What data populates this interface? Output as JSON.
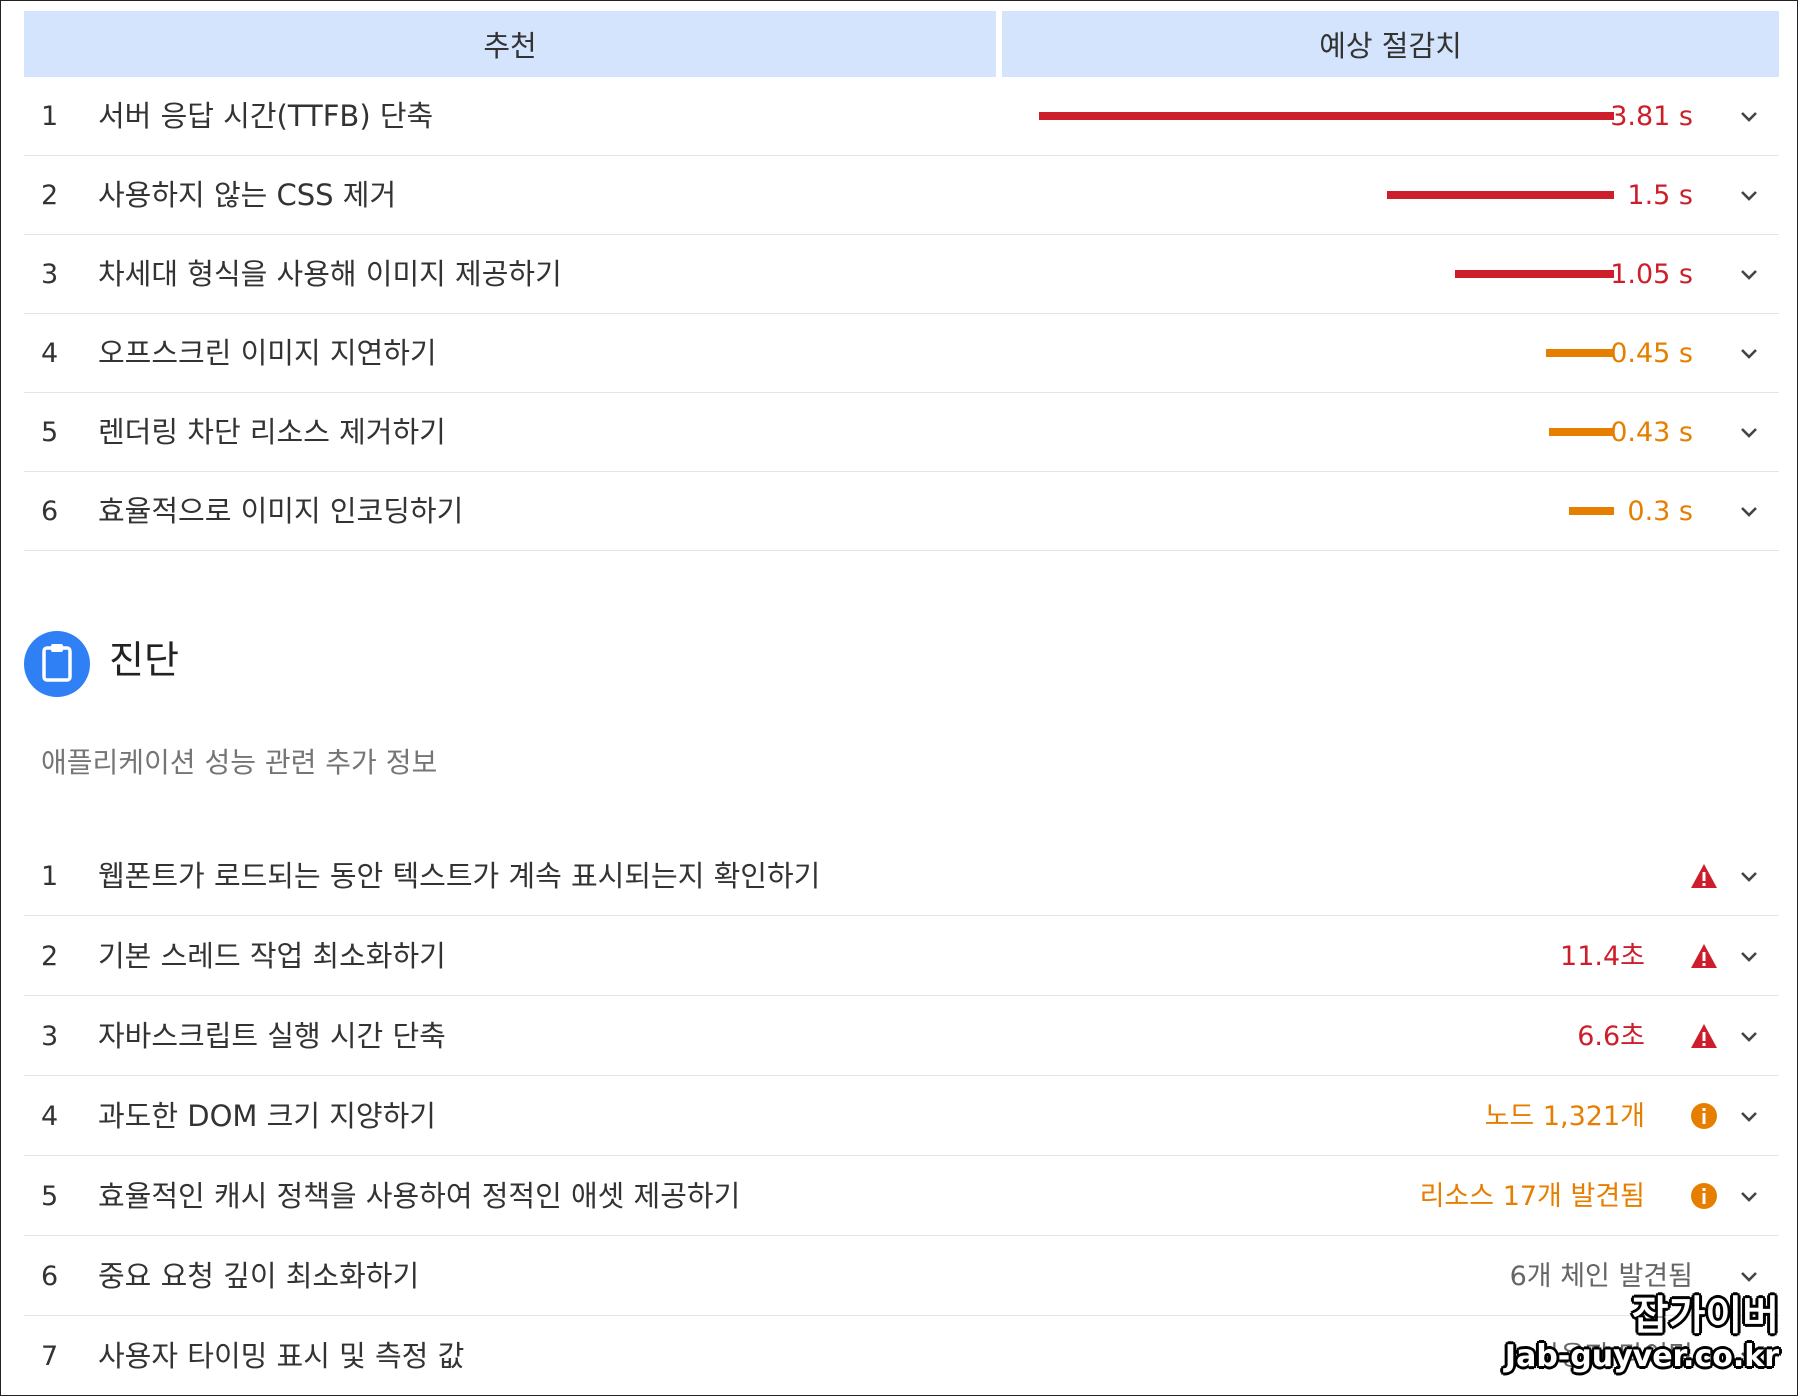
{
  "header": {
    "col1": "추천",
    "col2": "예상 절감치"
  },
  "opportunities": [
    {
      "num": "1",
      "title": "서버 응답 시간(TTFB) 단축",
      "value": "3.81 s",
      "level": "red",
      "bar_fraction": 1.0
    },
    {
      "num": "2",
      "title": "사용하지 않는 CSS 제거",
      "value": "1.5 s",
      "level": "red",
      "bar_fraction": 0.394
    },
    {
      "num": "3",
      "title": "차세대 형식을 사용해 이미지 제공하기",
      "value": "1.05 s",
      "level": "red",
      "bar_fraction": 0.276
    },
    {
      "num": "4",
      "title": "오프스크린 이미지 지연하기",
      "value": "0.45 s",
      "level": "orange",
      "bar_fraction": 0.118
    },
    {
      "num": "5",
      "title": "렌더링 차단 리소스 제거하기",
      "value": "0.43 s",
      "level": "orange",
      "bar_fraction": 0.113
    },
    {
      "num": "6",
      "title": "효율적으로 이미지 인코딩하기",
      "value": "0.3 s",
      "level": "orange",
      "bar_fraction": 0.079
    }
  ],
  "diagnostics": {
    "icon": "clipboard-icon",
    "title": "진단",
    "description": "애플리케이션 성능 관련 추가 정보",
    "items": [
      {
        "num": "1",
        "title": "웹폰트가 로드되는 동안 텍스트가 계속 표시되는지 확인하기",
        "value": "",
        "level": "red",
        "icon": "warning-triangle-icon"
      },
      {
        "num": "2",
        "title": "기본 스레드 작업 최소화하기",
        "value": "11.4초",
        "level": "red",
        "icon": "warning-triangle-icon"
      },
      {
        "num": "3",
        "title": "자바스크립트 실행 시간 단축",
        "value": "6.6초",
        "level": "red",
        "icon": "warning-triangle-icon"
      },
      {
        "num": "4",
        "title": "과도한 DOM 크기 지양하기",
        "value": "노드 1,321개",
        "level": "orange",
        "icon": "info-circle-icon"
      },
      {
        "num": "5",
        "title": "효율적인 캐시 정책을 사용하여 정적인 애셋 제공하기",
        "value": "리소스 17개 발견됨",
        "level": "orange",
        "icon": "info-circle-icon"
      },
      {
        "num": "6",
        "title": "중요 요청 깊이 최소화하기",
        "value": "6개 체인 발견됨",
        "level": "gray",
        "icon": ""
      },
      {
        "num": "7",
        "title": "사용자 타이밍 표시 및 측정 값",
        "value": "사용자 타이밍",
        "level": "gray",
        "icon": ""
      }
    ]
  },
  "watermark": {
    "line1": "잡가이버",
    "line2": "Jab-guyver.co.kr"
  },
  "colors": {
    "red": "#cc1f2b",
    "orange": "#e67e00",
    "header_bg": "#d4e4fc",
    "accent_blue": "#2f7ff5"
  }
}
